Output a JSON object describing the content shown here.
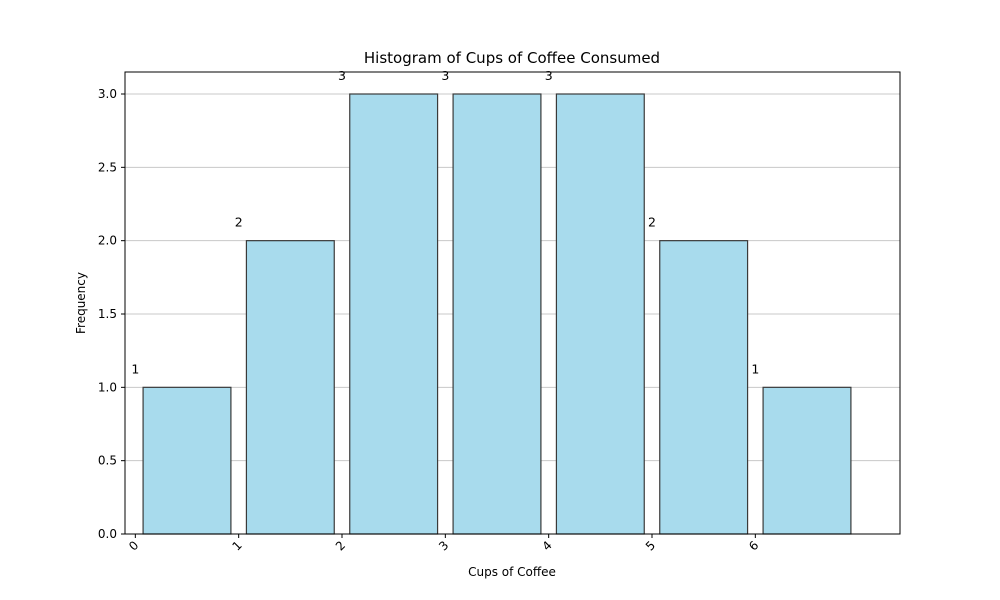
{
  "chart_data": {
    "type": "bar",
    "title": "Histogram of Cups of Coffee Consumed",
    "xlabel": "Cups of Coffee",
    "ylabel": "Frequency",
    "bins": [
      [
        0,
        1
      ],
      [
        1,
        2
      ],
      [
        2,
        3
      ],
      [
        3,
        4
      ],
      [
        4,
        5
      ],
      [
        5,
        6
      ],
      [
        6,
        7
      ]
    ],
    "values": [
      1,
      2,
      3,
      3,
      3,
      2,
      1
    ],
    "data_labels": [
      "1",
      "2",
      "3",
      "3",
      "3",
      "2",
      "1"
    ],
    "x_ticks": [
      0,
      1,
      2,
      3,
      4,
      5,
      6
    ],
    "x_tick_labels": [
      "0",
      "1",
      "2",
      "3",
      "4",
      "5",
      "6"
    ],
    "y_ticks": [
      0.0,
      0.5,
      1.0,
      1.5,
      2.0,
      2.5,
      3.0
    ],
    "y_tick_labels": [
      "0.0",
      "0.5",
      "1.0",
      "1.5",
      "2.0",
      "2.5",
      "3.0"
    ],
    "xlim": [
      -0.1,
      7.4
    ],
    "ylim": [
      0,
      3.15
    ],
    "grid": "horizontal",
    "colors": {
      "bar_fill": "#a8dbed",
      "bar_edge": "#3a3a3a",
      "grid": "#c8c8c8",
      "axis": "#000000"
    }
  }
}
